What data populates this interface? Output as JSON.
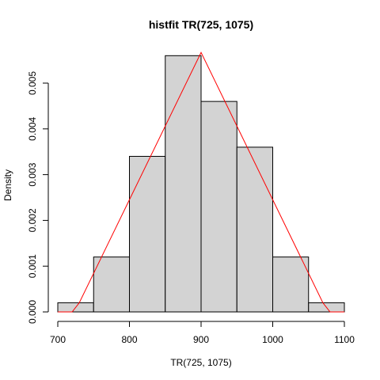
{
  "chart_data": {
    "type": "bar",
    "title": "histfit TR(725, 1075)",
    "xlabel": "TR(725, 1075)",
    "ylabel": "Density",
    "xlim": [
      700,
      1100
    ],
    "ylim": [
      0,
      0.0056
    ],
    "x_ticks": [
      700,
      800,
      900,
      1000,
      1100
    ],
    "y_ticks": [
      0.0,
      0.001,
      0.002,
      0.003,
      0.004,
      0.005
    ],
    "y_tick_labels": [
      "0.000",
      "0.001",
      "0.002",
      "0.003",
      "0.004",
      "0.005"
    ],
    "bins": [
      {
        "x0": 700,
        "x1": 750,
        "density": 0.0002
      },
      {
        "x0": 750,
        "x1": 800,
        "density": 0.0012
      },
      {
        "x0": 800,
        "x1": 850,
        "density": 0.0034
      },
      {
        "x0": 850,
        "x1": 900,
        "density": 0.0056
      },
      {
        "x0": 900,
        "x1": 950,
        "density": 0.0046
      },
      {
        "x0": 950,
        "x1": 1000,
        "density": 0.0036
      },
      {
        "x0": 1000,
        "x1": 1050,
        "density": 0.0012
      },
      {
        "x0": 1050,
        "x1": 1100,
        "density": 0.0002
      }
    ],
    "fit_curve": {
      "color": "#ff0000",
      "x": [
        700,
        720,
        730,
        900,
        1070,
        1080,
        1100
      ],
      "y": [
        0,
        0,
        0.0002,
        0.00567,
        0.0002,
        0,
        0
      ]
    },
    "colors": {
      "bar_fill": "#d3d3d3",
      "bar_stroke": "#000000",
      "fit_line": "#ff0000"
    },
    "grid": false
  }
}
